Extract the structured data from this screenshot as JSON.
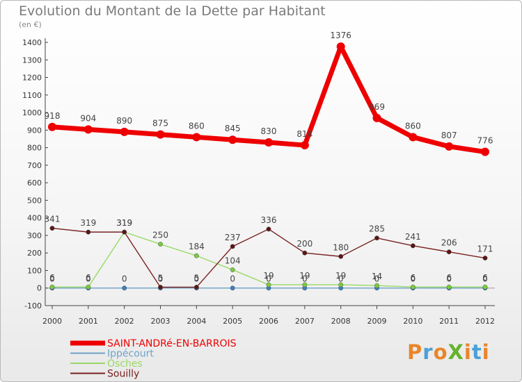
{
  "title": "Evolution du Montant de la Dette par Habitant",
  "subtitle": "(en €)",
  "logo": {
    "text": "ProXiti",
    "colors": [
      "#e9862a",
      "#4aa0d8",
      "#e9862a",
      "#65b32e",
      "#e9862a",
      "#4aa0d8",
      "#e9862a"
    ]
  },
  "chart_data": {
    "type": "line",
    "x": [
      "2000",
      "2001",
      "2002",
      "2003",
      "2004",
      "2005",
      "2006",
      "2007",
      "2008",
      "2009",
      "2010",
      "2011",
      "2012"
    ],
    "ylim": [
      -100,
      1400
    ],
    "yticks": [
      -100,
      0,
      100,
      200,
      300,
      400,
      500,
      600,
      700,
      800,
      900,
      1000,
      1100,
      1200,
      1300,
      1400
    ],
    "grid": false,
    "legend_position": "bottom-left",
    "series": [
      {
        "name": "SAINT-ANDRé-EN-BARROIS",
        "color": "#ee0000",
        "values": [
          918,
          904,
          890,
          875,
          860,
          845,
          830,
          814,
          1376,
          969,
          860,
          807,
          776
        ],
        "labels": [
          "918",
          "904",
          "890",
          "875",
          "860",
          "845",
          "830",
          "814",
          "1376",
          "969",
          "860",
          "807",
          "776"
        ]
      },
      {
        "name": "Ippécourt",
        "color": "#6fa3c8",
        "values": [
          0,
          0,
          0,
          0,
          0,
          0,
          0,
          0,
          0,
          0,
          0,
          0,
          0
        ],
        "labels": [
          "0",
          "0",
          "0",
          "0",
          "0",
          "0",
          "0",
          "0",
          "0",
          "0",
          "0",
          "0",
          "0"
        ]
      },
      {
        "name": "Osches",
        "color": "#99d966",
        "values": [
          6,
          6,
          319,
          250,
          184,
          104,
          19,
          19,
          19,
          14,
          6,
          6,
          6
        ],
        "labels": [
          "6",
          "6",
          "319",
          "250",
          "184",
          "104",
          "19",
          "19",
          "19",
          "14",
          "6",
          "6",
          "6"
        ]
      },
      {
        "name": "Souilly",
        "color": "#7a2020",
        "values": [
          341,
          319,
          319,
          5,
          5,
          237,
          336,
          200,
          180,
          285,
          241,
          206,
          171
        ],
        "labels": [
          "341",
          "319",
          "319",
          "5",
          "5",
          "237",
          "336",
          "200",
          "180",
          "285",
          "241",
          "206",
          "171"
        ]
      }
    ]
  }
}
